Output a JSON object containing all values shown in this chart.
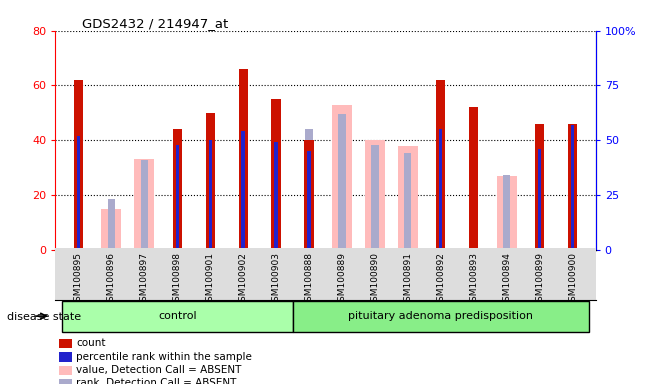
{
  "title": "GDS2432 / 214947_at",
  "samples": [
    "GSM100895",
    "GSM100896",
    "GSM100897",
    "GSM100898",
    "GSM100901",
    "GSM100902",
    "GSM100903",
    "GSM100888",
    "GSM100889",
    "GSM100890",
    "GSM100891",
    "GSM100892",
    "GSM100893",
    "GSM100894",
    "GSM100899",
    "GSM100900"
  ],
  "count": [
    62,
    null,
    null,
    44,
    50,
    66,
    55,
    40,
    null,
    null,
    null,
    62,
    52,
    null,
    46,
    46
  ],
  "percentile": [
    52,
    null,
    null,
    48,
    50,
    54,
    49,
    45,
    null,
    null,
    null,
    55,
    null,
    null,
    46,
    57
  ],
  "value_absent": [
    null,
    15,
    33,
    null,
    null,
    null,
    null,
    null,
    53,
    40,
    38,
    null,
    null,
    27,
    null,
    null
  ],
  "rank_absent": [
    null,
    23,
    41,
    null,
    null,
    null,
    null,
    55,
    62,
    48,
    44,
    null,
    null,
    34,
    null,
    null
  ],
  "control_indices": [
    0,
    1,
    2,
    3,
    4,
    5,
    6
  ],
  "pituitary_indices": [
    7,
    8,
    9,
    10,
    11,
    12,
    13,
    14,
    15
  ],
  "group_labels": [
    "control",
    "pituitary adenoma predisposition"
  ],
  "ylim_left": [
    0,
    80
  ],
  "ylim_right": [
    0,
    100
  ],
  "yticks_left": [
    0,
    20,
    40,
    60,
    80
  ],
  "yticks_right": [
    0,
    25,
    50,
    75,
    100
  ],
  "yticklabels_right": [
    "0",
    "25",
    "50",
    "75",
    "100%"
  ],
  "count_color": "#cc1100",
  "percentile_color": "#2222cc",
  "value_absent_color": "#ffbbbb",
  "rank_absent_color": "#aaaacc",
  "bg_color": "#ffffff",
  "xtick_bg_color": "#dddddd",
  "group_ctrl_color": "#aaffaa",
  "group_pit_color": "#88ee88",
  "disease_state_label": "disease state",
  "legend_items": [
    {
      "label": "count",
      "color": "#cc1100",
      "marker": "s"
    },
    {
      "label": "percentile rank within the sample",
      "color": "#2222cc",
      "marker": "s"
    },
    {
      "label": "value, Detection Call = ABSENT",
      "color": "#ffbbbb",
      "marker": "s"
    },
    {
      "label": "rank, Detection Call = ABSENT",
      "color": "#aaaacc",
      "marker": "s"
    }
  ]
}
